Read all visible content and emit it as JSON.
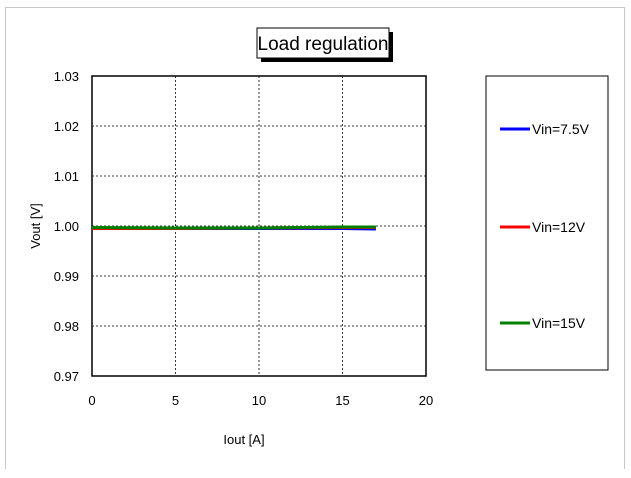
{
  "chart_data": {
    "type": "line",
    "title": "Load regulation",
    "xlabel": "Iout [A]",
    "ylabel": "Vout [V]",
    "xlim": [
      0,
      20
    ],
    "ylim": [
      0.97,
      1.03
    ],
    "x_ticks": [
      "0",
      "5",
      "10",
      "15",
      "20"
    ],
    "y_ticks": [
      "0.97",
      "0.98",
      "0.99",
      "1.00",
      "1.01",
      "1.02",
      "1.03"
    ],
    "grid": true,
    "legend_position": "right",
    "series": [
      {
        "name": "Vin=7.5V",
        "color": "#0000ff",
        "x": [
          0,
          5,
          10,
          15,
          17
        ],
        "y": [
          0.9995,
          0.9995,
          0.9995,
          0.9995,
          0.9994
        ]
      },
      {
        "name": "Vin=12V",
        "color": "#ff0000",
        "x": [
          0,
          5,
          10,
          15,
          17
        ],
        "y": [
          0.9995,
          0.9995,
          0.9996,
          0.9997,
          0.9997
        ]
      },
      {
        "name": "Vin=15V",
        "color": "#008000",
        "x": [
          0,
          5,
          10,
          15,
          17
        ],
        "y": [
          0.9997,
          0.9996,
          0.9996,
          0.9998,
          0.9998
        ]
      }
    ]
  }
}
